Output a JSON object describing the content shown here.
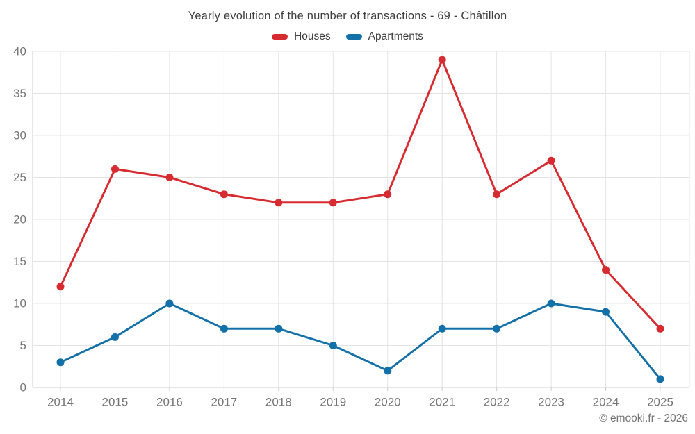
{
  "header": {
    "title": "Yearly evolution of the number of transactions - 69 - Châtillon"
  },
  "footer": {
    "text": "© emooki.fr - 2026"
  },
  "legend": {
    "items": [
      {
        "label": "Houses",
        "color": "#d62b30"
      },
      {
        "label": "Apartments",
        "color": "#1470a8"
      }
    ]
  },
  "chart_data": {
    "type": "line",
    "title": "Yearly evolution of the number of transactions - 69 - Châtillon",
    "categories": [
      "2014",
      "2015",
      "2016",
      "2017",
      "2018",
      "2019",
      "2020",
      "2021",
      "2022",
      "2023",
      "2024",
      "2025"
    ],
    "series": [
      {
        "name": "Houses",
        "color": "#d62b30",
        "values": [
          12,
          26,
          25,
          23,
          22,
          22,
          23,
          39,
          23,
          27,
          14,
          7
        ]
      },
      {
        "name": "Apartments",
        "color": "#1470a8",
        "values": [
          3,
          6,
          10,
          7,
          7,
          5,
          2,
          7,
          7,
          10,
          9,
          1
        ]
      }
    ],
    "xlabel": "",
    "ylabel": "",
    "ylim": [
      0,
      40
    ],
    "yticks": [
      0,
      5,
      10,
      15,
      20,
      25,
      30,
      35,
      40
    ],
    "grid": true,
    "legend_position": "top",
    "colors": {
      "grid_line": "#e4e4e4",
      "axis_line": "#cccccc",
      "tick_text": "#757575"
    }
  }
}
